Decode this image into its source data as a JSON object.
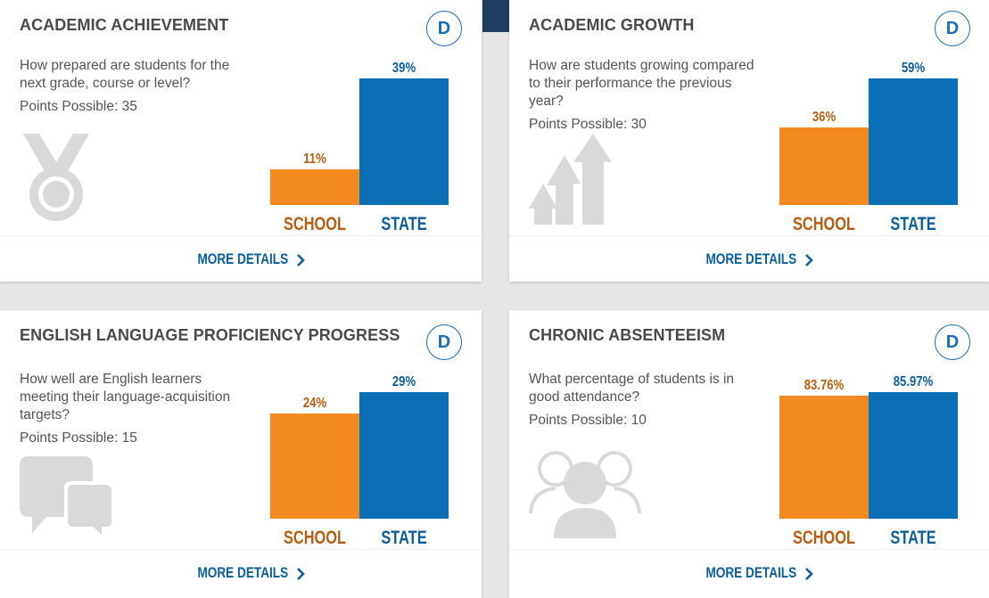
{
  "cards": [
    {
      "title": "ACADEMIC ACHIEVEMENT",
      "grade": "D",
      "question": "How prepared are students for the next grade, course or level?",
      "points": "Points Possible: 35",
      "icon": "medal-icon",
      "school_value": "11%",
      "state_value": "39%",
      "school_pct": 11,
      "state_pct": 39,
      "school_label": "SCHOOL",
      "state_label": "STATE",
      "more": "MORE DETAILS"
    },
    {
      "title": "ACADEMIC GROWTH",
      "grade": "D",
      "question": "How are students growing compared to their performance the previous year?",
      "points": "Points Possible: 30",
      "icon": "growth-arrows-icon",
      "school_value": "36%",
      "state_value": "59%",
      "school_pct": 36,
      "state_pct": 59,
      "school_label": "SCHOOL",
      "state_label": "STATE",
      "more": "MORE DETAILS"
    },
    {
      "title": "ENGLISH LANGUAGE PROFICIENCY PROGRESS",
      "grade": "D",
      "question": "How well are English learners meeting their language-acquisition targets?",
      "points": "Points Possible: 15",
      "icon": "speech-bubbles-icon",
      "school_value": "24%",
      "state_value": "29%",
      "school_pct": 24,
      "state_pct": 29,
      "school_label": "SCHOOL",
      "state_label": "STATE",
      "more": "MORE DETAILS"
    },
    {
      "title": "CHRONIC ABSENTEEISM",
      "grade": "D",
      "question": "What percentage of students is in good attendance?",
      "points": "Points Possible: 10",
      "icon": "group-people-icon",
      "school_value": "83.76%",
      "state_value": "85.97%",
      "school_pct": 83.76,
      "state_pct": 85.97,
      "school_label": "SCHOOL",
      "state_label": "STATE",
      "more": "MORE DETAILS"
    }
  ],
  "colors": {
    "school": "#f28a20",
    "state": "#0a6fb4",
    "link": "#0a5f9c",
    "icon": "#d9d9d9"
  }
}
